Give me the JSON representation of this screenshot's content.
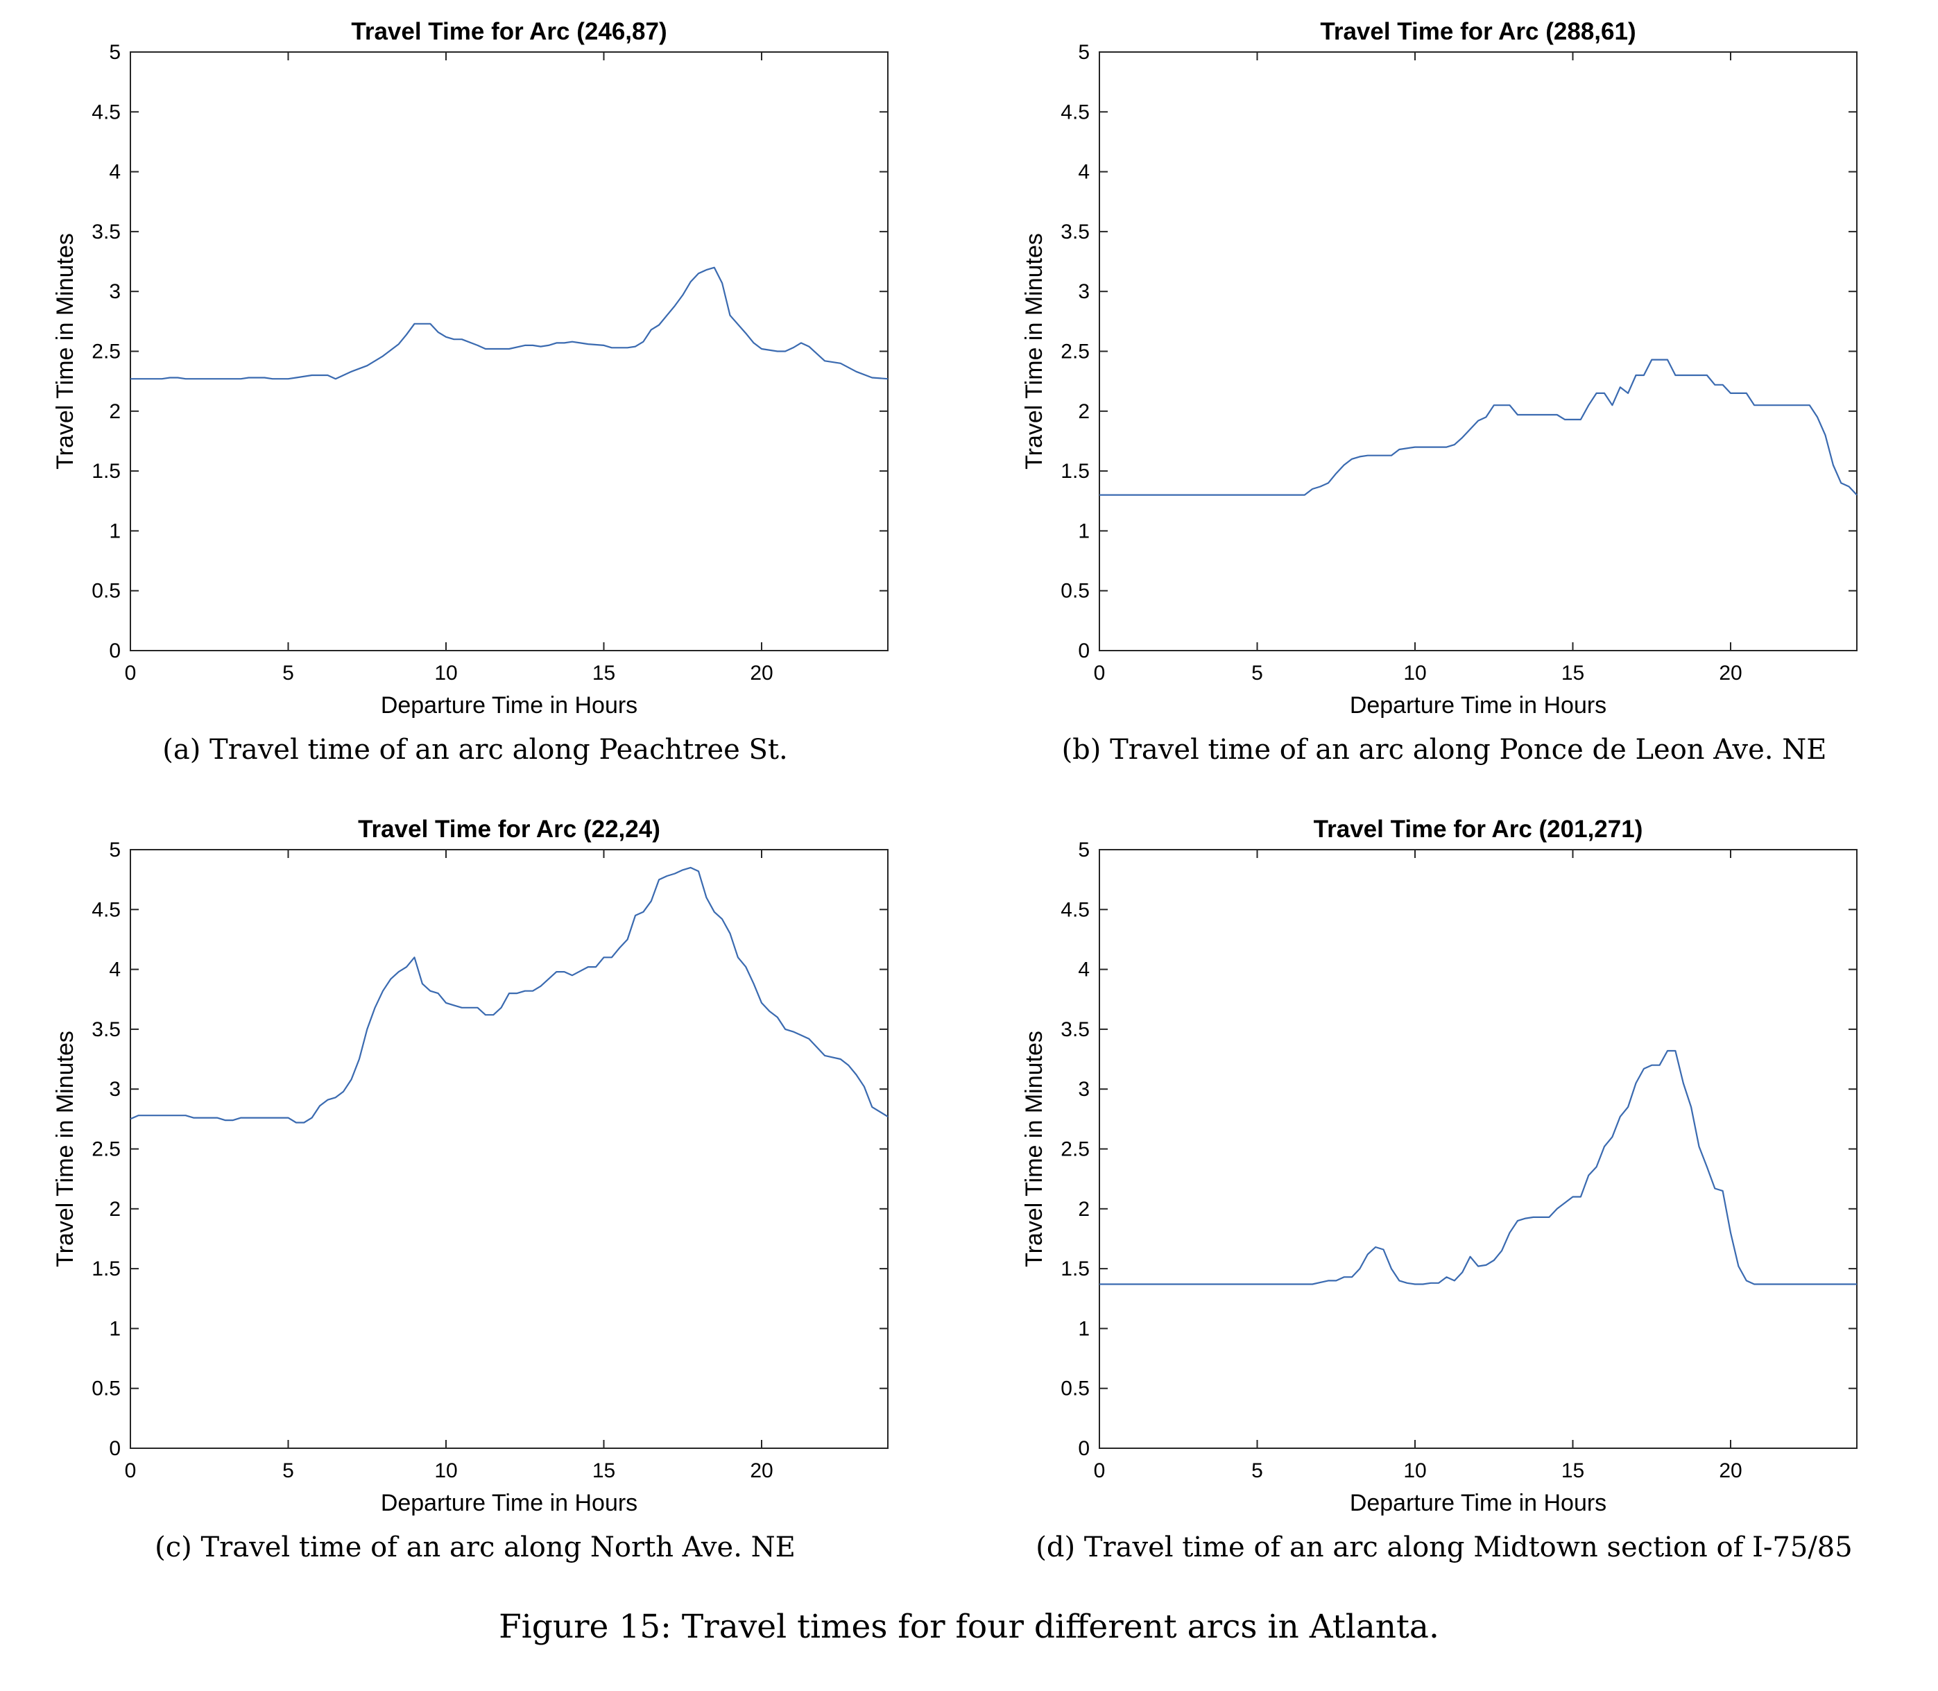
{
  "figure_caption": "Figure 15: Travel times for four different arcs in Atlanta.",
  "captions": [
    "(a) Travel time of an arc along Peachtree St.",
    "(b) Travel time of an arc along Ponce de Leon Ave. NE",
    "(c) Travel time of an arc along North Ave. NE",
    "(d) Travel time of an arc along Midtown section of I-75/85"
  ],
  "chart_data": [
    {
      "type": "line",
      "title": "Travel Time for Arc (246,87)",
      "xlabel": "Departure Time in Hours",
      "ylabel": "Travel Time in Minutes",
      "xlim": [
        0,
        24
      ],
      "ylim": [
        0,
        5
      ],
      "xticks": [
        "0",
        "5",
        "10",
        "15",
        "20"
      ],
      "yticks": [
        "0",
        "0.5",
        "1",
        "1.5",
        "2",
        "2.5",
        "3",
        "3.5",
        "4",
        "4.5",
        "5"
      ],
      "grid": false,
      "line_color": "#3a6ab0",
      "x": [
        0,
        1,
        1.25,
        1.5,
        1.75,
        2,
        3.5,
        3.75,
        4.25,
        4.5,
        5,
        5.25,
        5.75,
        6.25,
        6.5,
        7,
        7.5,
        8,
        8.5,
        8.75,
        9,
        9.5,
        9.75,
        10,
        10.25,
        10.5,
        11,
        11.25,
        11.75,
        12,
        12.5,
        12.75,
        13,
        13.25,
        13.5,
        13.75,
        14,
        14.25,
        14.5,
        15,
        15.25,
        15.75,
        16,
        16.25,
        16.5,
        16.75,
        17,
        17.25,
        17.5,
        17.75,
        18,
        18.25,
        18.5,
        18.75,
        19,
        19.5,
        19.75,
        20,
        20.5,
        20.75,
        21,
        21.25,
        21.5,
        22,
        22.5,
        23,
        23.5,
        24
      ],
      "y": [
        2.27,
        2.27,
        2.28,
        2.28,
        2.27,
        2.27,
        2.27,
        2.28,
        2.28,
        2.27,
        2.27,
        2.28,
        2.3,
        2.3,
        2.27,
        2.33,
        2.38,
        2.46,
        2.56,
        2.64,
        2.73,
        2.73,
        2.66,
        2.62,
        2.6,
        2.6,
        2.55,
        2.52,
        2.52,
        2.52,
        2.55,
        2.55,
        2.54,
        2.55,
        2.57,
        2.57,
        2.58,
        2.57,
        2.56,
        2.55,
        2.53,
        2.53,
        2.54,
        2.58,
        2.68,
        2.72,
        2.8,
        2.88,
        2.97,
        3.08,
        3.15,
        3.18,
        3.2,
        3.07,
        2.8,
        2.65,
        2.57,
        2.52,
        2.5,
        2.5,
        2.53,
        2.57,
        2.54,
        2.42,
        2.4,
        2.33,
        2.28,
        2.27
      ]
    },
    {
      "type": "line",
      "title": "Travel Time for Arc (288,61)",
      "xlabel": "Departure Time in Hours",
      "ylabel": "Travel Time in Minutes",
      "xlim": [
        0,
        24
      ],
      "ylim": [
        0,
        5
      ],
      "xticks": [
        "0",
        "5",
        "10",
        "15",
        "20"
      ],
      "yticks": [
        "0",
        "0.5",
        "1",
        "1.5",
        "2",
        "2.5",
        "3",
        "3.5",
        "4",
        "4.5",
        "5"
      ],
      "grid": false,
      "line_color": "#3a6ab0",
      "x": [
        0,
        6.5,
        6.75,
        7,
        7.25,
        7.5,
        7.75,
        8,
        8.25,
        8.5,
        9,
        9.25,
        9.5,
        10,
        10.5,
        11,
        11.25,
        11.5,
        11.75,
        12,
        12.25,
        12.5,
        12.75,
        13,
        13.25,
        13.5,
        14,
        14.5,
        14.75,
        15,
        15.25,
        15.5,
        15.75,
        16,
        16.25,
        16.5,
        16.75,
        17,
        17.25,
        17.5,
        17.75,
        18,
        18.25,
        18.5,
        19,
        19.25,
        19.5,
        19.75,
        20,
        20.25,
        20.5,
        20.75,
        21,
        21.5,
        22,
        22.5,
        22.75,
        23,
        23.25,
        23.5,
        23.75,
        24
      ],
      "y": [
        1.3,
        1.3,
        1.35,
        1.37,
        1.4,
        1.48,
        1.55,
        1.6,
        1.62,
        1.63,
        1.63,
        1.63,
        1.68,
        1.7,
        1.7,
        1.7,
        1.72,
        1.78,
        1.85,
        1.92,
        1.95,
        2.05,
        2.05,
        2.05,
        1.97,
        1.97,
        1.97,
        1.97,
        1.93,
        1.93,
        1.93,
        2.05,
        2.15,
        2.15,
        2.05,
        2.2,
        2.15,
        2.3,
        2.3,
        2.43,
        2.43,
        2.43,
        2.3,
        2.3,
        2.3,
        2.3,
        2.22,
        2.22,
        2.15,
        2.15,
        2.15,
        2.05,
        2.05,
        2.05,
        2.05,
        2.05,
        1.95,
        1.8,
        1.55,
        1.4,
        1.37,
        1.3
      ]
    },
    {
      "type": "line",
      "title": "Travel Time for Arc (22,24)",
      "xlabel": "Departure Time in Hours",
      "ylabel": "Travel Time in Minutes",
      "xlim": [
        0,
        24
      ],
      "ylim": [
        0,
        5
      ],
      "xticks": [
        "0",
        "5",
        "10",
        "15",
        "20"
      ],
      "yticks": [
        "0",
        "0.5",
        "1",
        "1.5",
        "2",
        "2.5",
        "3",
        "3.5",
        "4",
        "4.5",
        "5"
      ],
      "grid": false,
      "line_color": "#3a6ab0",
      "x": [
        0,
        0.25,
        1.75,
        2,
        2.75,
        3,
        3.25,
        3.5,
        5,
        5.25,
        5.5,
        5.75,
        6,
        6.25,
        6.5,
        6.75,
        7,
        7.25,
        7.5,
        7.75,
        8,
        8.25,
        8.5,
        8.75,
        9,
        9.25,
        9.5,
        9.75,
        10,
        10.25,
        10.5,
        10.75,
        11,
        11.25,
        11.5,
        11.75,
        12,
        12.25,
        12.5,
        12.75,
        13,
        13.5,
        13.75,
        14,
        14.5,
        14.75,
        15,
        15.25,
        15.5,
        15.75,
        16,
        16.25,
        16.5,
        16.75,
        17,
        17.25,
        17.5,
        17.75,
        18,
        18.25,
        18.5,
        18.75,
        19,
        19.25,
        19.5,
        19.75,
        20,
        20.25,
        20.5,
        20.75,
        21,
        21.25,
        21.5,
        22,
        22.5,
        22.75,
        23,
        23.25,
        23.5,
        24
      ],
      "y": [
        2.75,
        2.78,
        2.78,
        2.76,
        2.76,
        2.74,
        2.74,
        2.76,
        2.76,
        2.72,
        2.72,
        2.76,
        2.86,
        2.91,
        2.93,
        2.98,
        3.08,
        3.25,
        3.5,
        3.68,
        3.82,
        3.92,
        3.98,
        4.02,
        4.1,
        3.88,
        3.82,
        3.8,
        3.72,
        3.7,
        3.68,
        3.68,
        3.68,
        3.62,
        3.62,
        3.68,
        3.8,
        3.8,
        3.82,
        3.82,
        3.86,
        3.98,
        3.98,
        3.95,
        4.02,
        4.02,
        4.1,
        4.1,
        4.18,
        4.25,
        4.45,
        4.48,
        4.57,
        4.75,
        4.78,
        4.8,
        4.83,
        4.85,
        4.82,
        4.6,
        4.48,
        4.42,
        4.3,
        4.1,
        4.02,
        3.88,
        3.72,
        3.65,
        3.6,
        3.5,
        3.48,
        3.45,
        3.42,
        3.28,
        3.25,
        3.2,
        3.12,
        3.02,
        2.85,
        2.77
      ]
    },
    {
      "type": "line",
      "title": "Travel Time for Arc (201,271)",
      "xlabel": "Departure Time in Hours",
      "ylabel": "Travel Time in Minutes",
      "xlim": [
        0,
        24
      ],
      "ylim": [
        0,
        5
      ],
      "xticks": [
        "0",
        "5",
        "10",
        "15",
        "20"
      ],
      "yticks": [
        "0",
        "0.5",
        "1",
        "1.5",
        "2",
        "2.5",
        "3",
        "3.5",
        "4",
        "4.5",
        "5"
      ],
      "grid": false,
      "line_color": "#3a6ab0",
      "x": [
        0,
        6.75,
        7.25,
        7.5,
        7.75,
        8,
        8.25,
        8.5,
        8.75,
        9,
        9.25,
        9.5,
        9.75,
        10,
        10.25,
        10.5,
        10.75,
        11,
        11.25,
        11.5,
        11.75,
        12,
        12.25,
        12.5,
        12.75,
        13,
        13.25,
        13.5,
        13.75,
        14,
        14.25,
        14.5,
        15,
        15.25,
        15.5,
        15.75,
        16,
        16.25,
        16.5,
        16.75,
        17,
        17.25,
        17.5,
        17.75,
        18,
        18.25,
        18.5,
        18.75,
        19,
        19.25,
        19.5,
        19.75,
        20,
        20.25,
        20.5,
        20.75,
        24
      ],
      "y": [
        1.37,
        1.37,
        1.4,
        1.4,
        1.43,
        1.43,
        1.5,
        1.62,
        1.68,
        1.66,
        1.5,
        1.4,
        1.38,
        1.37,
        1.37,
        1.38,
        1.38,
        1.43,
        1.4,
        1.47,
        1.6,
        1.52,
        1.53,
        1.57,
        1.65,
        1.8,
        1.9,
        1.92,
        1.93,
        1.93,
        1.93,
        2.0,
        2.1,
        2.1,
        2.28,
        2.35,
        2.52,
        2.6,
        2.77,
        2.85,
        3.05,
        3.17,
        3.2,
        3.2,
        3.32,
        3.32,
        3.05,
        2.85,
        2.52,
        2.35,
        2.17,
        2.15,
        1.8,
        1.52,
        1.4,
        1.37,
        1.37
      ]
    }
  ]
}
